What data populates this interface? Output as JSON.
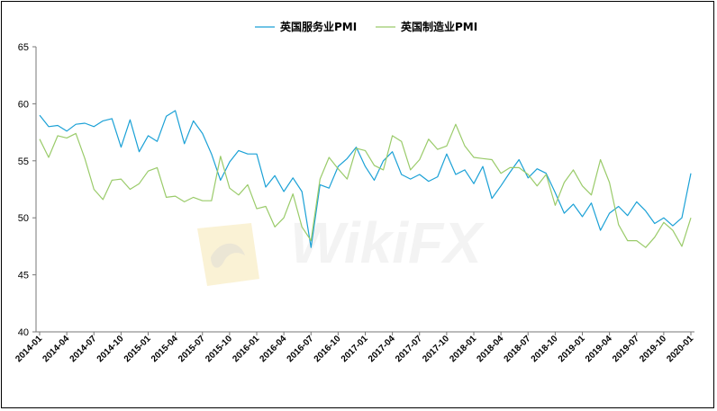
{
  "chart_data": {
    "type": "line",
    "legend": [
      "英国服务业PMI",
      "英国制造业PMI"
    ],
    "legend_position": "top-center",
    "ylim": [
      40,
      65
    ],
    "yticks": [
      40,
      45,
      50,
      55,
      60,
      65
    ],
    "grid": false,
    "x_tick_labels": [
      "2014-01",
      "2014-04",
      "2014-07",
      "2014-10",
      "2015-01",
      "2015-04",
      "2015-07",
      "2015-10",
      "2016-01",
      "2016-04",
      "2016-07",
      "2016-10",
      "2017-01",
      "2017-04",
      "2017-07",
      "2017-10",
      "2018-01",
      "2018-04",
      "2018-07",
      "2018-10",
      "2019-01",
      "2019-04",
      "2019-07",
      "2019-10",
      "2020-01"
    ],
    "x": [
      "2014-01",
      "2014-02",
      "2014-03",
      "2014-04",
      "2014-05",
      "2014-06",
      "2014-07",
      "2014-08",
      "2014-09",
      "2014-10",
      "2014-11",
      "2014-12",
      "2015-01",
      "2015-02",
      "2015-03",
      "2015-04",
      "2015-05",
      "2015-06",
      "2015-07",
      "2015-08",
      "2015-09",
      "2015-10",
      "2015-11",
      "2015-12",
      "2016-01",
      "2016-02",
      "2016-03",
      "2016-04",
      "2016-05",
      "2016-06",
      "2016-07",
      "2016-08",
      "2016-09",
      "2016-10",
      "2016-11",
      "2016-12",
      "2017-01",
      "2017-02",
      "2017-03",
      "2017-04",
      "2017-05",
      "2017-06",
      "2017-07",
      "2017-08",
      "2017-09",
      "2017-10",
      "2017-11",
      "2017-12",
      "2018-01",
      "2018-02",
      "2018-03",
      "2018-04",
      "2018-05",
      "2018-06",
      "2018-07",
      "2018-08",
      "2018-09",
      "2018-10",
      "2018-11",
      "2018-12",
      "2019-01",
      "2019-02",
      "2019-03",
      "2019-04",
      "2019-05",
      "2019-06",
      "2019-07",
      "2019-08",
      "2019-09",
      "2019-10",
      "2019-11",
      "2019-12",
      "2020-01"
    ],
    "series": [
      {
        "name": "英国服务业PMI",
        "color": "#1ba1d6",
        "values": [
          59.0,
          58.0,
          58.1,
          57.6,
          58.2,
          58.3,
          58.0,
          58.5,
          58.7,
          56.2,
          58.6,
          55.8,
          57.2,
          56.7,
          58.9,
          59.4,
          56.5,
          58.5,
          57.4,
          55.6,
          53.3,
          54.9,
          55.9,
          55.6,
          55.6,
          52.7,
          53.7,
          52.3,
          53.5,
          52.3,
          47.4,
          52.9,
          52.6,
          54.5,
          55.2,
          56.2,
          54.5,
          53.3,
          55.0,
          55.8,
          53.8,
          53.4,
          53.8,
          53.2,
          53.6,
          55.6,
          53.8,
          54.2,
          53.0,
          54.5,
          51.7,
          52.8,
          54.0,
          55.1,
          53.5,
          54.3,
          53.9,
          52.2,
          50.4,
          51.2,
          50.1,
          51.3,
          48.9,
          50.4,
          51.0,
          50.2,
          51.4,
          50.6,
          49.5,
          50.0,
          49.3,
          50.0,
          53.9
        ]
      },
      {
        "name": "英国制造业PMI",
        "color": "#9acb6a",
        "values": [
          56.9,
          55.3,
          57.2,
          57.0,
          57.4,
          55.2,
          52.5,
          51.6,
          53.3,
          53.4,
          52.5,
          53.0,
          54.1,
          54.4,
          51.8,
          51.9,
          51.4,
          51.8,
          51.5,
          51.5,
          55.4,
          52.6,
          52.0,
          52.9,
          50.8,
          51.0,
          49.2,
          50.0,
          52.1,
          49.2,
          48.0,
          53.4,
          55.3,
          54.3,
          53.4,
          56.1,
          55.9,
          54.6,
          54.2,
          57.2,
          56.7,
          54.2,
          55.1,
          56.9,
          56.0,
          56.3,
          58.2,
          56.3,
          55.3,
          55.2,
          55.1,
          53.9,
          54.4,
          54.4,
          53.8,
          52.8,
          53.8,
          51.1,
          53.1,
          54.2,
          52.8,
          52.0,
          55.1,
          53.1,
          49.4,
          48.0,
          48.0,
          47.4,
          48.3,
          49.6,
          48.9,
          47.5,
          50.0
        ]
      }
    ]
  },
  "watermark": "WikiFX"
}
